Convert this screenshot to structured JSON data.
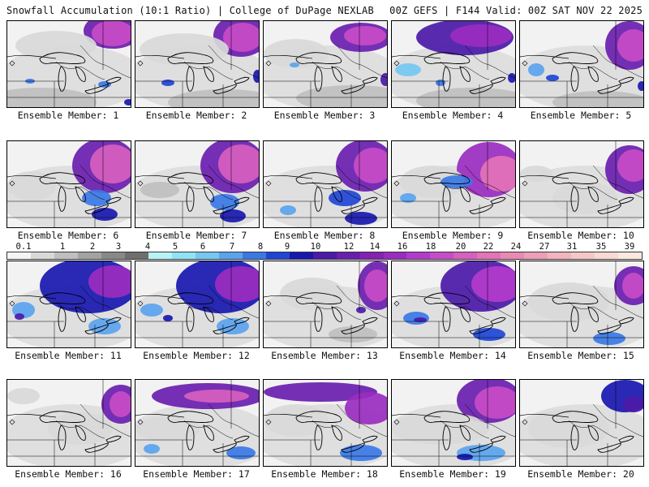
{
  "header": {
    "left": "Snowfall Accumulation (10:1 Ratio) | College of DuPage NEXLAB",
    "right": "00Z GEFS | F144 Valid: 00Z SAT NOV 22 2025"
  },
  "members": [
    {
      "label": "Ensemble Member: 1"
    },
    {
      "label": "Ensemble Member: 2"
    },
    {
      "label": "Ensemble Member: 3"
    },
    {
      "label": "Ensemble Member: 4"
    },
    {
      "label": "Ensemble Member: 5"
    },
    {
      "label": "Ensemble Member: 6"
    },
    {
      "label": "Ensemble Member: 7"
    },
    {
      "label": "Ensemble Member: 8"
    },
    {
      "label": "Ensemble Member: 9"
    },
    {
      "label": "Ensemble Member: 10"
    },
    {
      "label": "Ensemble Member: 11"
    },
    {
      "label": "Ensemble Member: 12"
    },
    {
      "label": "Ensemble Member: 13"
    },
    {
      "label": "Ensemble Member: 14"
    },
    {
      "label": "Ensemble Member: 15"
    },
    {
      "label": "Ensemble Member: 16"
    },
    {
      "label": "Ensemble Member: 17"
    },
    {
      "label": "Ensemble Member: 18"
    },
    {
      "label": "Ensemble Member: 19"
    },
    {
      "label": "Ensemble Member: 20"
    }
  ],
  "colorbar": {
    "labels": [
      "0.1",
      "1",
      "2",
      "3",
      "4",
      "5",
      "6",
      "7",
      "8",
      "9",
      "10",
      "12",
      "14",
      "16",
      "18",
      "20",
      "22",
      "24",
      "27",
      "31",
      "35",
      "39"
    ],
    "colors": [
      "#f4f4f4",
      "#d9d9d9",
      "#bfbfbf",
      "#a3a3a3",
      "#888888",
      "#6e6e6e",
      "#b5f3f7",
      "#8fe3f5",
      "#74c8f2",
      "#5aa3ee",
      "#3b78e6",
      "#1f45d6",
      "#1818b0",
      "#4b1aa8",
      "#6a1eaf",
      "#8422b4",
      "#9a2cc0",
      "#b33bcc",
      "#c84cc8",
      "#d85fc0",
      "#e473b8",
      "#ea89b4",
      "#ee9fb8",
      "#f2b4be",
      "#f5c8c6",
      "#f8dad2",
      "#fbe9e0"
    ]
  }
}
